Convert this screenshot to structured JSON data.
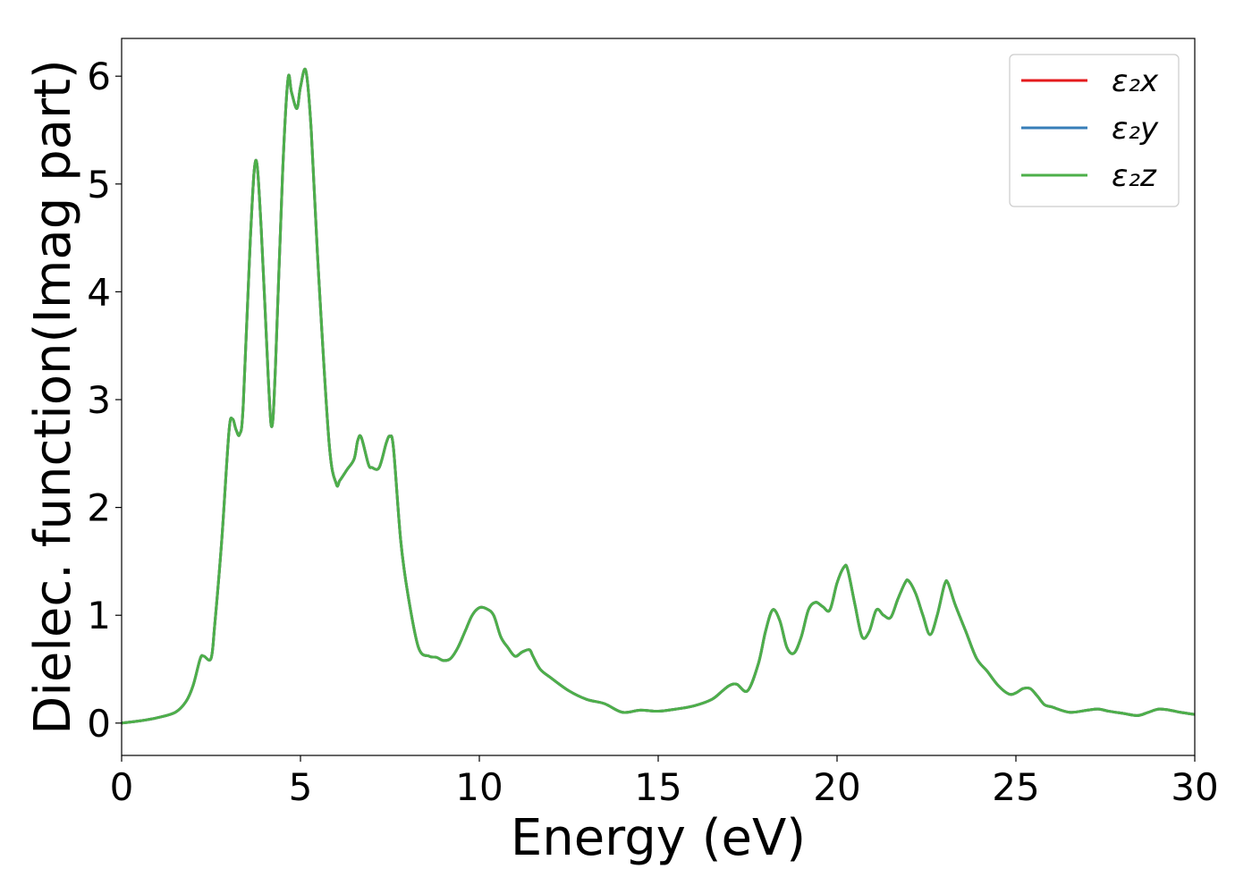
{
  "chart_data": {
    "type": "line",
    "xlabel": "Energy (eV)",
    "ylabel": "Dielec. function(Imag part)",
    "xlim": [
      0,
      30
    ],
    "ylim": [
      -0.3,
      6.35
    ],
    "xticks": [
      0,
      5,
      10,
      15,
      20,
      25,
      30
    ],
    "xtick_labels": [
      "0",
      "5",
      "10",
      "15",
      "20",
      "25",
      "30"
    ],
    "yticks": [
      0,
      1,
      2,
      3,
      4,
      5,
      6
    ],
    "ytick_labels": [
      "0",
      "1",
      "2",
      "3",
      "4",
      "5",
      "6"
    ],
    "grid": false,
    "legend_position": "top-right",
    "x": [
      0,
      0.5,
      1.0,
      1.5,
      1.8,
      2.0,
      2.2,
      2.3,
      2.5,
      2.6,
      2.8,
      3.0,
      3.1,
      3.2,
      3.3,
      3.4,
      3.6,
      3.75,
      3.9,
      4.1,
      4.2,
      4.3,
      4.5,
      4.65,
      4.75,
      4.9,
      5.0,
      5.15,
      5.3,
      5.5,
      5.8,
      6.0,
      6.1,
      6.3,
      6.5,
      6.6,
      6.7,
      6.9,
      7.0,
      7.2,
      7.4,
      7.5,
      7.6,
      7.8,
      8.0,
      8.3,
      8.6,
      8.8,
      9.0,
      9.2,
      9.4,
      9.6,
      9.8,
      10.0,
      10.2,
      10.4,
      10.6,
      10.8,
      11.0,
      11.2,
      11.4,
      11.5,
      11.7,
      12.0,
      12.5,
      13.0,
      13.5,
      14.0,
      14.5,
      15.0,
      15.5,
      16.0,
      16.5,
      16.8,
      17.0,
      17.2,
      17.5,
      17.8,
      18.0,
      18.2,
      18.4,
      18.6,
      18.8,
      19.0,
      19.2,
      19.4,
      19.6,
      19.8,
      20.0,
      20.2,
      20.3,
      20.5,
      20.7,
      20.9,
      21.1,
      21.3,
      21.5,
      21.7,
      21.9,
      22.0,
      22.2,
      22.4,
      22.6,
      22.8,
      23.0,
      23.1,
      23.3,
      23.6,
      23.9,
      24.2,
      24.5,
      24.8,
      25.0,
      25.2,
      25.4,
      25.6,
      25.8,
      26.0,
      26.5,
      27.0,
      27.3,
      27.6,
      28.0,
      28.4,
      28.7,
      29.0,
      29.3,
      29.6,
      30.0
    ],
    "series": [
      {
        "name": "ε₂x",
        "color": "#e41a1c",
        "y": [
          0.0,
          0.02,
          0.05,
          0.1,
          0.2,
          0.35,
          0.6,
          0.62,
          0.6,
          0.9,
          1.7,
          2.7,
          2.82,
          2.72,
          2.68,
          2.95,
          4.5,
          5.22,
          4.6,
          3.2,
          2.75,
          3.3,
          5.1,
          5.97,
          5.85,
          5.7,
          5.9,
          6.05,
          5.5,
          4.2,
          2.6,
          2.22,
          2.25,
          2.35,
          2.45,
          2.62,
          2.65,
          2.4,
          2.37,
          2.37,
          2.6,
          2.66,
          2.55,
          1.7,
          1.2,
          0.7,
          0.62,
          0.61,
          0.58,
          0.6,
          0.7,
          0.85,
          1.0,
          1.07,
          1.06,
          1.0,
          0.8,
          0.7,
          0.62,
          0.66,
          0.68,
          0.62,
          0.5,
          0.42,
          0.3,
          0.22,
          0.18,
          0.1,
          0.12,
          0.11,
          0.13,
          0.16,
          0.22,
          0.3,
          0.35,
          0.36,
          0.3,
          0.55,
          0.85,
          1.05,
          0.95,
          0.7,
          0.65,
          0.8,
          1.05,
          1.12,
          1.08,
          1.05,
          1.3,
          1.45,
          1.42,
          1.1,
          0.8,
          0.85,
          1.05,
          1.0,
          0.98,
          1.15,
          1.3,
          1.32,
          1.2,
          1.0,
          0.82,
          1.0,
          1.28,
          1.3,
          1.1,
          0.85,
          0.6,
          0.48,
          0.35,
          0.27,
          0.28,
          0.32,
          0.32,
          0.25,
          0.17,
          0.15,
          0.1,
          0.12,
          0.13,
          0.11,
          0.09,
          0.07,
          0.1,
          0.13,
          0.12,
          0.1,
          0.08
        ]
      },
      {
        "name": "ε₂y",
        "color": "#377eb8",
        "y": [
          0.0,
          0.02,
          0.05,
          0.1,
          0.2,
          0.35,
          0.6,
          0.62,
          0.6,
          0.9,
          1.7,
          2.7,
          2.82,
          2.72,
          2.68,
          2.95,
          4.5,
          5.22,
          4.6,
          3.2,
          2.75,
          3.3,
          5.1,
          5.97,
          5.85,
          5.7,
          5.9,
          6.05,
          5.5,
          4.2,
          2.6,
          2.22,
          2.25,
          2.35,
          2.45,
          2.62,
          2.65,
          2.4,
          2.37,
          2.37,
          2.6,
          2.66,
          2.55,
          1.7,
          1.2,
          0.7,
          0.62,
          0.61,
          0.58,
          0.6,
          0.7,
          0.85,
          1.0,
          1.07,
          1.06,
          1.0,
          0.8,
          0.7,
          0.62,
          0.66,
          0.68,
          0.62,
          0.5,
          0.42,
          0.3,
          0.22,
          0.18,
          0.1,
          0.12,
          0.11,
          0.13,
          0.16,
          0.22,
          0.3,
          0.35,
          0.36,
          0.3,
          0.55,
          0.85,
          1.05,
          0.95,
          0.7,
          0.65,
          0.8,
          1.05,
          1.12,
          1.08,
          1.05,
          1.3,
          1.45,
          1.42,
          1.1,
          0.8,
          0.85,
          1.05,
          1.0,
          0.98,
          1.15,
          1.3,
          1.32,
          1.2,
          1.0,
          0.82,
          1.0,
          1.28,
          1.3,
          1.1,
          0.85,
          0.6,
          0.48,
          0.35,
          0.27,
          0.28,
          0.32,
          0.32,
          0.25,
          0.17,
          0.15,
          0.1,
          0.12,
          0.13,
          0.11,
          0.09,
          0.07,
          0.1,
          0.13,
          0.12,
          0.1,
          0.08
        ]
      },
      {
        "name": "ε₂z",
        "color": "#4daf4a",
        "y": [
          0.0,
          0.02,
          0.05,
          0.1,
          0.2,
          0.35,
          0.6,
          0.62,
          0.6,
          0.9,
          1.7,
          2.7,
          2.82,
          2.72,
          2.68,
          2.95,
          4.5,
          5.22,
          4.6,
          3.2,
          2.75,
          3.3,
          5.1,
          5.97,
          5.85,
          5.7,
          5.9,
          6.05,
          5.5,
          4.2,
          2.6,
          2.22,
          2.25,
          2.35,
          2.45,
          2.62,
          2.65,
          2.4,
          2.37,
          2.37,
          2.6,
          2.66,
          2.55,
          1.7,
          1.2,
          0.7,
          0.62,
          0.61,
          0.58,
          0.6,
          0.7,
          0.85,
          1.0,
          1.07,
          1.06,
          1.0,
          0.8,
          0.7,
          0.62,
          0.66,
          0.68,
          0.62,
          0.5,
          0.42,
          0.3,
          0.22,
          0.18,
          0.1,
          0.12,
          0.11,
          0.13,
          0.16,
          0.22,
          0.3,
          0.35,
          0.36,
          0.3,
          0.55,
          0.85,
          1.05,
          0.95,
          0.7,
          0.65,
          0.8,
          1.05,
          1.12,
          1.08,
          1.05,
          1.3,
          1.45,
          1.42,
          1.1,
          0.8,
          0.85,
          1.05,
          1.0,
          0.98,
          1.15,
          1.3,
          1.32,
          1.2,
          1.0,
          0.82,
          1.0,
          1.28,
          1.3,
          1.1,
          0.85,
          0.6,
          0.48,
          0.35,
          0.27,
          0.28,
          0.32,
          0.32,
          0.25,
          0.17,
          0.15,
          0.1,
          0.12,
          0.13,
          0.11,
          0.09,
          0.07,
          0.1,
          0.13,
          0.12,
          0.1,
          0.08
        ]
      }
    ]
  }
}
